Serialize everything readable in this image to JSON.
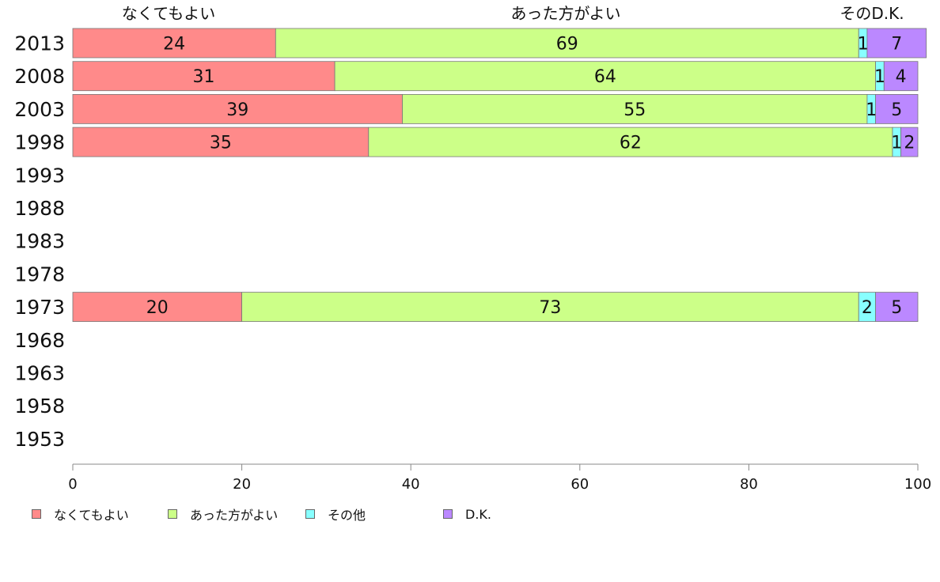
{
  "chart_data": {
    "type": "bar",
    "orientation": "horizontal",
    "stacked": true,
    "categories": [
      "2013",
      "2008",
      "2003",
      "1998",
      "1993",
      "1988",
      "1983",
      "1978",
      "1973",
      "1968",
      "1963",
      "1958",
      "1953"
    ],
    "top_labels": [
      "なくてもよい",
      "あった方がよい",
      "そのD.K."
    ],
    "series": [
      {
        "name": "なくてもよい",
        "color": "#ff8a8a",
        "values": [
          24,
          31,
          39,
          35,
          null,
          null,
          null,
          null,
          20,
          null,
          null,
          null,
          null
        ]
      },
      {
        "name": "あった方がよい",
        "color": "#ccff88",
        "values": [
          69,
          64,
          55,
          62,
          null,
          null,
          null,
          null,
          73,
          null,
          null,
          null,
          null
        ]
      },
      {
        "name": "その他",
        "color": "#88ffff",
        "values": [
          1,
          1,
          1,
          1,
          null,
          null,
          null,
          null,
          2,
          null,
          null,
          null,
          null
        ]
      },
      {
        "name": "D.K.",
        "color": "#bb88ff",
        "values": [
          7,
          4,
          5,
          2,
          null,
          null,
          null,
          null,
          5,
          null,
          null,
          null,
          null
        ]
      }
    ],
    "xlim": [
      0,
      100
    ],
    "xticks": [
      0,
      20,
      40,
      60,
      80,
      100
    ],
    "legend_position": "bottom"
  }
}
